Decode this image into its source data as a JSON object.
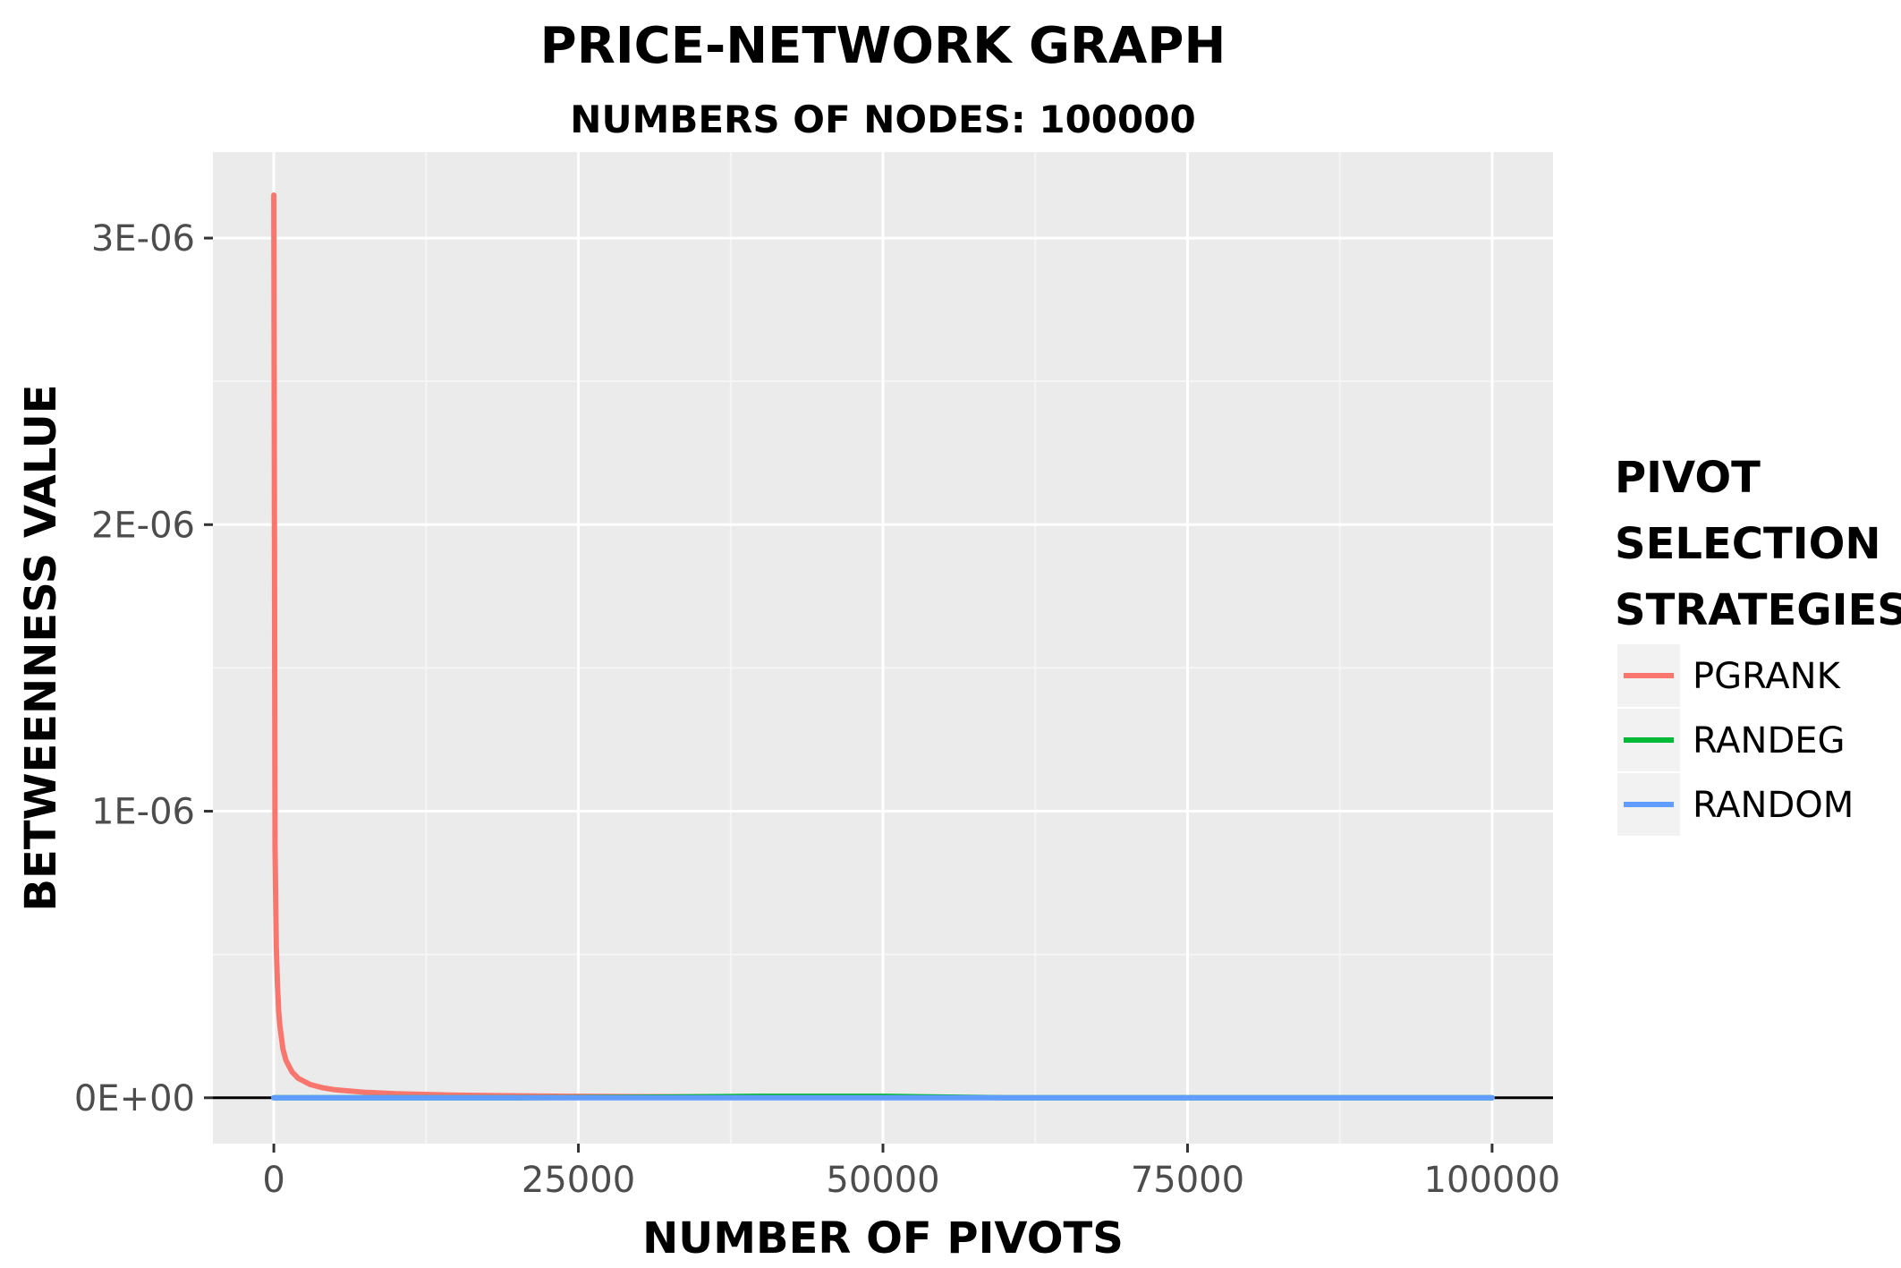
{
  "chart_data": {
    "type": "line",
    "title": "PRICE-NETWORK GRAPH",
    "subtitle": "NUMBERS OF NODES: 100000",
    "xlabel": "NUMBER OF PIVOTS",
    "ylabel": "BETWEENNESS VALUE",
    "xlim": [
      -5000,
      105000
    ],
    "ylim": [
      -1.6e-07,
      3.3e-06
    ],
    "x_ticks": [
      0,
      25000,
      50000,
      75000,
      100000
    ],
    "x_tick_labels": [
      "0",
      "25000",
      "50000",
      "75000",
      "100000"
    ],
    "y_ticks": [
      0,
      1e-06,
      2e-06,
      3e-06
    ],
    "y_tick_labels": [
      "0E+00",
      "1E-06",
      "2E-06",
      "3E-06"
    ],
    "grid": true,
    "legend_position": "right",
    "legend_title": "PIVOT SELECTION STRATEGIES",
    "legend_title_lines": [
      "PIVOT",
      "SELECTION",
      "STRATEGIES"
    ],
    "reference_line_y": 0,
    "series": [
      {
        "name": "PGRANK",
        "color": "#F8766D",
        "x": [
          0,
          100,
          200,
          300,
          400,
          500,
          750,
          1000,
          1500,
          2000,
          3000,
          4000,
          5000,
          7500,
          10000,
          15000,
          20000,
          25000,
          30000,
          40000,
          50000,
          56000
        ],
        "y": [
          3.15e-06,
          8.7e-07,
          5.3e-07,
          3.9e-07,
          3e-07,
          2.5e-07,
          1.7e-07,
          1.3e-07,
          9e-08,
          6.8e-08,
          4.6e-08,
          3.5e-08,
          2.8e-08,
          1.9e-08,
          1.4e-08,
          9e-09,
          6.5e-09,
          5e-09,
          4e-09,
          2.8e-09,
          2e-09,
          1.5e-09
        ]
      },
      {
        "name": "RANDEG",
        "color": "#00BA38",
        "x": [
          0,
          10000,
          20000,
          30000,
          40000,
          50000,
          56000,
          60000,
          70000,
          80000,
          90000,
          100000
        ],
        "y": [
          0,
          0,
          0,
          2e-09,
          5e-09,
          5e-09,
          2e-09,
          0,
          0,
          0,
          0,
          0
        ]
      },
      {
        "name": "RANDOM",
        "color": "#619CFF",
        "x": [
          0,
          25000,
          50000,
          75000,
          100000
        ],
        "y": [
          0,
          0,
          0,
          0,
          0
        ]
      }
    ]
  }
}
